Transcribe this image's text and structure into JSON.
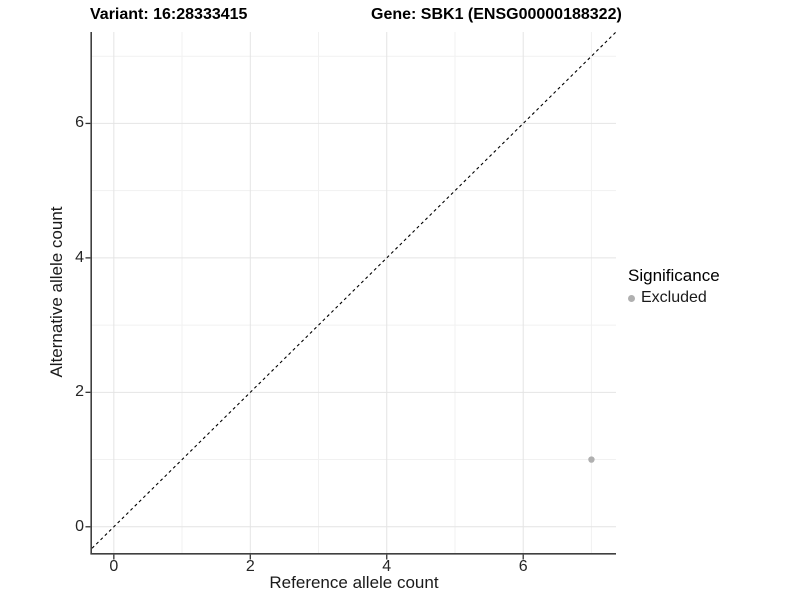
{
  "titles": {
    "left": "Variant: 16:28333415",
    "right": "Gene: SBK1 (ENSG00000188322)"
  },
  "chart_data": {
    "type": "scatter",
    "xlabel": "Reference allele count",
    "ylabel": "Alternative allele count",
    "x_ticks": [
      0,
      2,
      4,
      6
    ],
    "y_ticks": [
      0,
      2,
      4,
      6
    ],
    "x_minor_ticks": [
      1,
      3,
      5,
      7
    ],
    "y_minor_ticks": [
      1,
      3,
      5,
      7
    ],
    "xlim": [
      -0.32,
      7.36
    ],
    "ylim": [
      -0.39,
      7.36
    ],
    "grid": true,
    "points": [
      {
        "x": 7,
        "y": 1,
        "significance": "Excluded"
      }
    ],
    "point_radius": 3.2,
    "abline": {
      "slope": 1,
      "intercept": 0,
      "style": "dashed"
    },
    "legend": {
      "title": "Significance",
      "position": "right",
      "items": [
        {
          "label": "Excluded",
          "color": "#b0b0b0"
        }
      ]
    }
  },
  "colors": {
    "background": "#ffffff",
    "grid_major": "#e4e4e4",
    "grid_minor": "#f1f1f1",
    "axis_line": "#404040",
    "tick_mark": "#333333",
    "abline": "#000000",
    "point": "#b0b0b0"
  }
}
